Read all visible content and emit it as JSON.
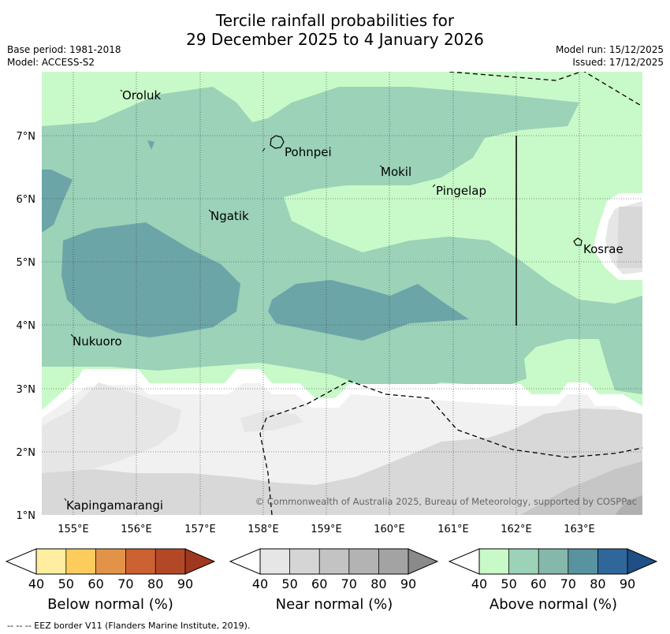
{
  "header": {
    "title_line1": "Tercile rainfall probabilities for",
    "title_line2": "29 December 2025 to 4 January 2026",
    "base_period": "Base period: 1981-2018",
    "model": "Model: ACCESS-S2",
    "model_run": "Model run: 15/12/2025",
    "issued": "Issued: 17/12/2025"
  },
  "map": {
    "lat_labels": [
      "7°N",
      "6°N",
      "5°N",
      "4°N",
      "3°N",
      "2°N",
      "1°N"
    ],
    "lon_labels": [
      "155°E",
      "156°E",
      "157°E",
      "158°E",
      "159°E",
      "160°E",
      "161°E",
      "162°E",
      "163°E"
    ],
    "places": [
      "Oroluk",
      "Pohnpei",
      "Mokil",
      "Pingelap",
      "Ngatik",
      "Kosrae",
      "Nukuoro",
      "Kapingamarangi"
    ],
    "copyright": "© Commonwealth of Australia 2025, Bureau of Meteorology, supported by COSPPac"
  },
  "colorbars": [
    {
      "label": "Below normal (%)",
      "colors": [
        "#ffffff",
        "#ffeda0",
        "#fecc5c",
        "#e39348",
        "#cc6131",
        "#b34827",
        "#a0381f"
      ],
      "ticks": [
        "40",
        "50",
        "60",
        "70",
        "80",
        "90"
      ]
    },
    {
      "label": "Near normal (%)",
      "colors": [
        "#ffffff",
        "#e6e6e6",
        "#d5d5d5",
        "#c3c3c3",
        "#b3b3b3",
        "#a3a3a3",
        "#8a8a8a"
      ],
      "ticks": [
        "40",
        "50",
        "60",
        "70",
        "80",
        "90"
      ]
    },
    {
      "label": "Above normal (%)",
      "colors": [
        "#ffffff",
        "#c8f9c8",
        "#9bd2b8",
        "#85b8aa",
        "#5993a0",
        "#30679a",
        "#1f4f85"
      ],
      "ticks": [
        "40",
        "50",
        "60",
        "70",
        "80",
        "90"
      ]
    }
  ],
  "footer": {
    "eez_note": "-- -- -- EEZ border V11 (Flanders Marine Institute, 2019)."
  }
}
